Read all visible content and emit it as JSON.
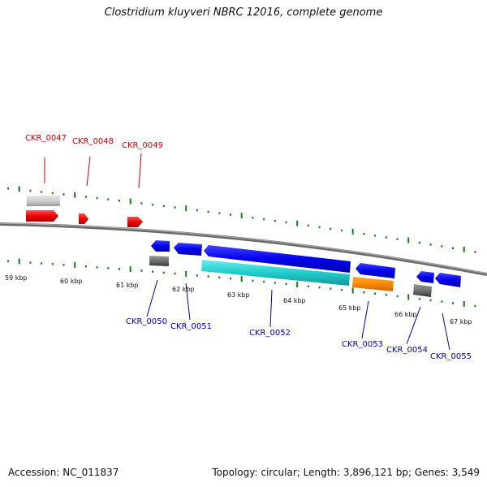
{
  "header": {
    "title": "Clostridium kluyveri NBRC 12016, complete genome"
  },
  "footer": {
    "accession": "Accession: NC_011837",
    "summary": "Topology: circular; Length: 3,896,121 bp; Genes: 3,549"
  },
  "scale": {
    "kbp_labels": [
      "59 kbp",
      "60 kbp",
      "61 kbp",
      "62 kbp",
      "63 kbp",
      "64 kbp",
      "65 kbp",
      "66 kbp",
      "67 kbp"
    ]
  },
  "genes_top": [
    {
      "label": "CKR_0047",
      "color": "#cc0000"
    },
    {
      "label": "CKR_0048",
      "color": "#cc0000"
    },
    {
      "label": "CKR_0049",
      "color": "#cc0000"
    }
  ],
  "genes_bottom": [
    {
      "label": "CKR_0050",
      "color": "#0000aa"
    },
    {
      "label": "CKR_0051",
      "color": "#0000aa"
    },
    {
      "label": "CKR_0052",
      "color": "#0000aa"
    },
    {
      "label": "CKR_0053",
      "color": "#0000aa"
    },
    {
      "label": "CKR_0054",
      "color": "#0000aa"
    },
    {
      "label": "CKR_0055",
      "color": "#0000aa"
    }
  ],
  "colors": {
    "forward_cds": "#ee0000",
    "reverse_cds": "#0000ee",
    "rna": "#22cccc",
    "misc": "#ff8800",
    "pseudo_light": "#c8c8c8",
    "pseudo_dark": "#666666",
    "backbone": "#808080",
    "ticks": "#1a7a1a"
  }
}
